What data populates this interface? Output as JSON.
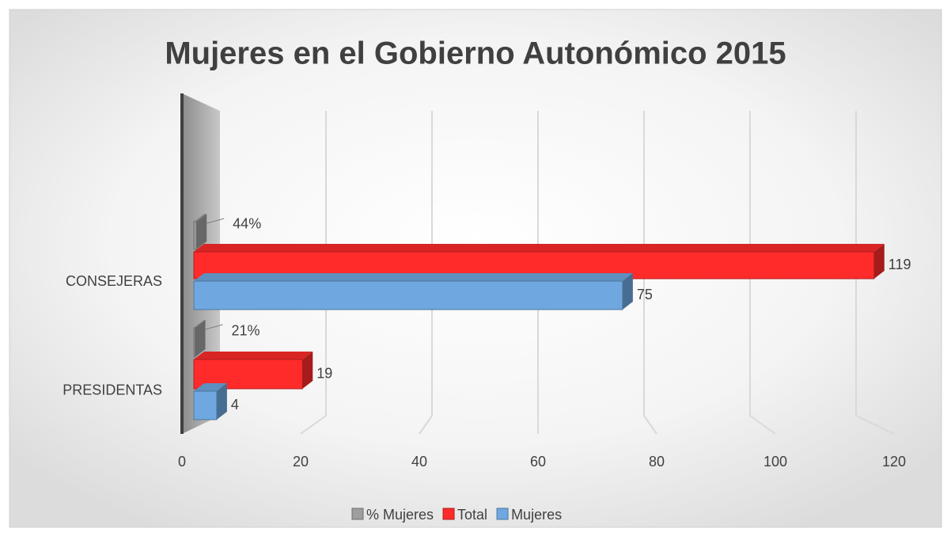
{
  "chart_data": {
    "type": "bar3d_horizontal",
    "title": "Mujeres en el Gobierno Autonómico 2015",
    "categories": [
      "CONSEJERAS",
      "PRESIDENTAS"
    ],
    "series": [
      {
        "name": "% Mujeres",
        "color": "#9e9e9e",
        "values": [
          0.44,
          0.21
        ],
        "value_labels": [
          "44%",
          "21%"
        ]
      },
      {
        "name": "Total",
        "color": "#ff2a2a",
        "values": [
          119,
          19
        ]
      },
      {
        "name": "Mujeres",
        "color": "#6fa8e0",
        "values": [
          75,
          4
        ]
      }
    ],
    "xlim": [
      0,
      120
    ],
    "xticks": [
      0,
      20,
      40,
      60,
      80,
      100,
      120
    ],
    "grid": true,
    "legend": "bottom"
  }
}
